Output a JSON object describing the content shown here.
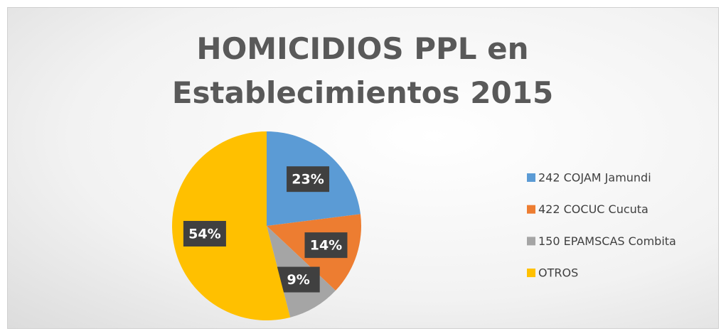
{
  "chart_data": {
    "type": "pie",
    "title": "HOMICIDIOS PPL en Establecimientos 2015",
    "categories": [
      "242 COJAM Jamundi",
      "422 COCUC Cucuta",
      "150 EPAMSCAS Combita",
      "OTROS"
    ],
    "values": [
      23,
      14,
      9,
      54
    ],
    "value_labels": [
      "23%",
      "14%",
      "9%",
      "54%"
    ],
    "colors": [
      "#5b9bd5",
      "#ed7d31",
      "#a5a5a5",
      "#ffc000"
    ],
    "legend": "right"
  }
}
